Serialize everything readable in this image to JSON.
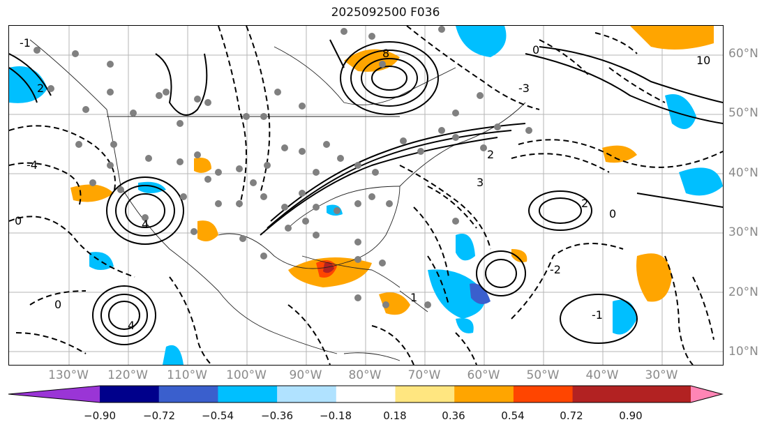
{
  "title": "2025092500 F036",
  "lat_labels": [
    "60°N",
    "50°N",
    "40°N",
    "30°N",
    "20°N",
    "10°N"
  ],
  "lon_labels": [
    "130°W",
    "120°W",
    "110°W",
    "100°W",
    "90°W",
    "80°W",
    "70°W",
    "60°W",
    "50°W",
    "40°W",
    "30°W"
  ],
  "contour_labels": [
    "-1",
    "-4",
    "0",
    "2",
    "4",
    "8",
    "10",
    "4",
    "3",
    "2",
    "0",
    "-2",
    "0",
    "-1",
    "-3",
    "1",
    "2",
    "0"
  ],
  "colorbar": {
    "ticks": [
      "−0.90",
      "−0.72",
      "−0.54",
      "−0.36",
      "−0.18",
      "0.18",
      "0.36",
      "0.54",
      "0.72",
      "0.90"
    ],
    "colors": [
      "#9a35d6",
      "#00008b",
      "#3a5fcd",
      "#00bfff",
      "#b0e2ff",
      "#ffffff",
      "#ffe680",
      "#ffa500",
      "#ff4500",
      "#b22222",
      "#ff85b5"
    ]
  }
}
